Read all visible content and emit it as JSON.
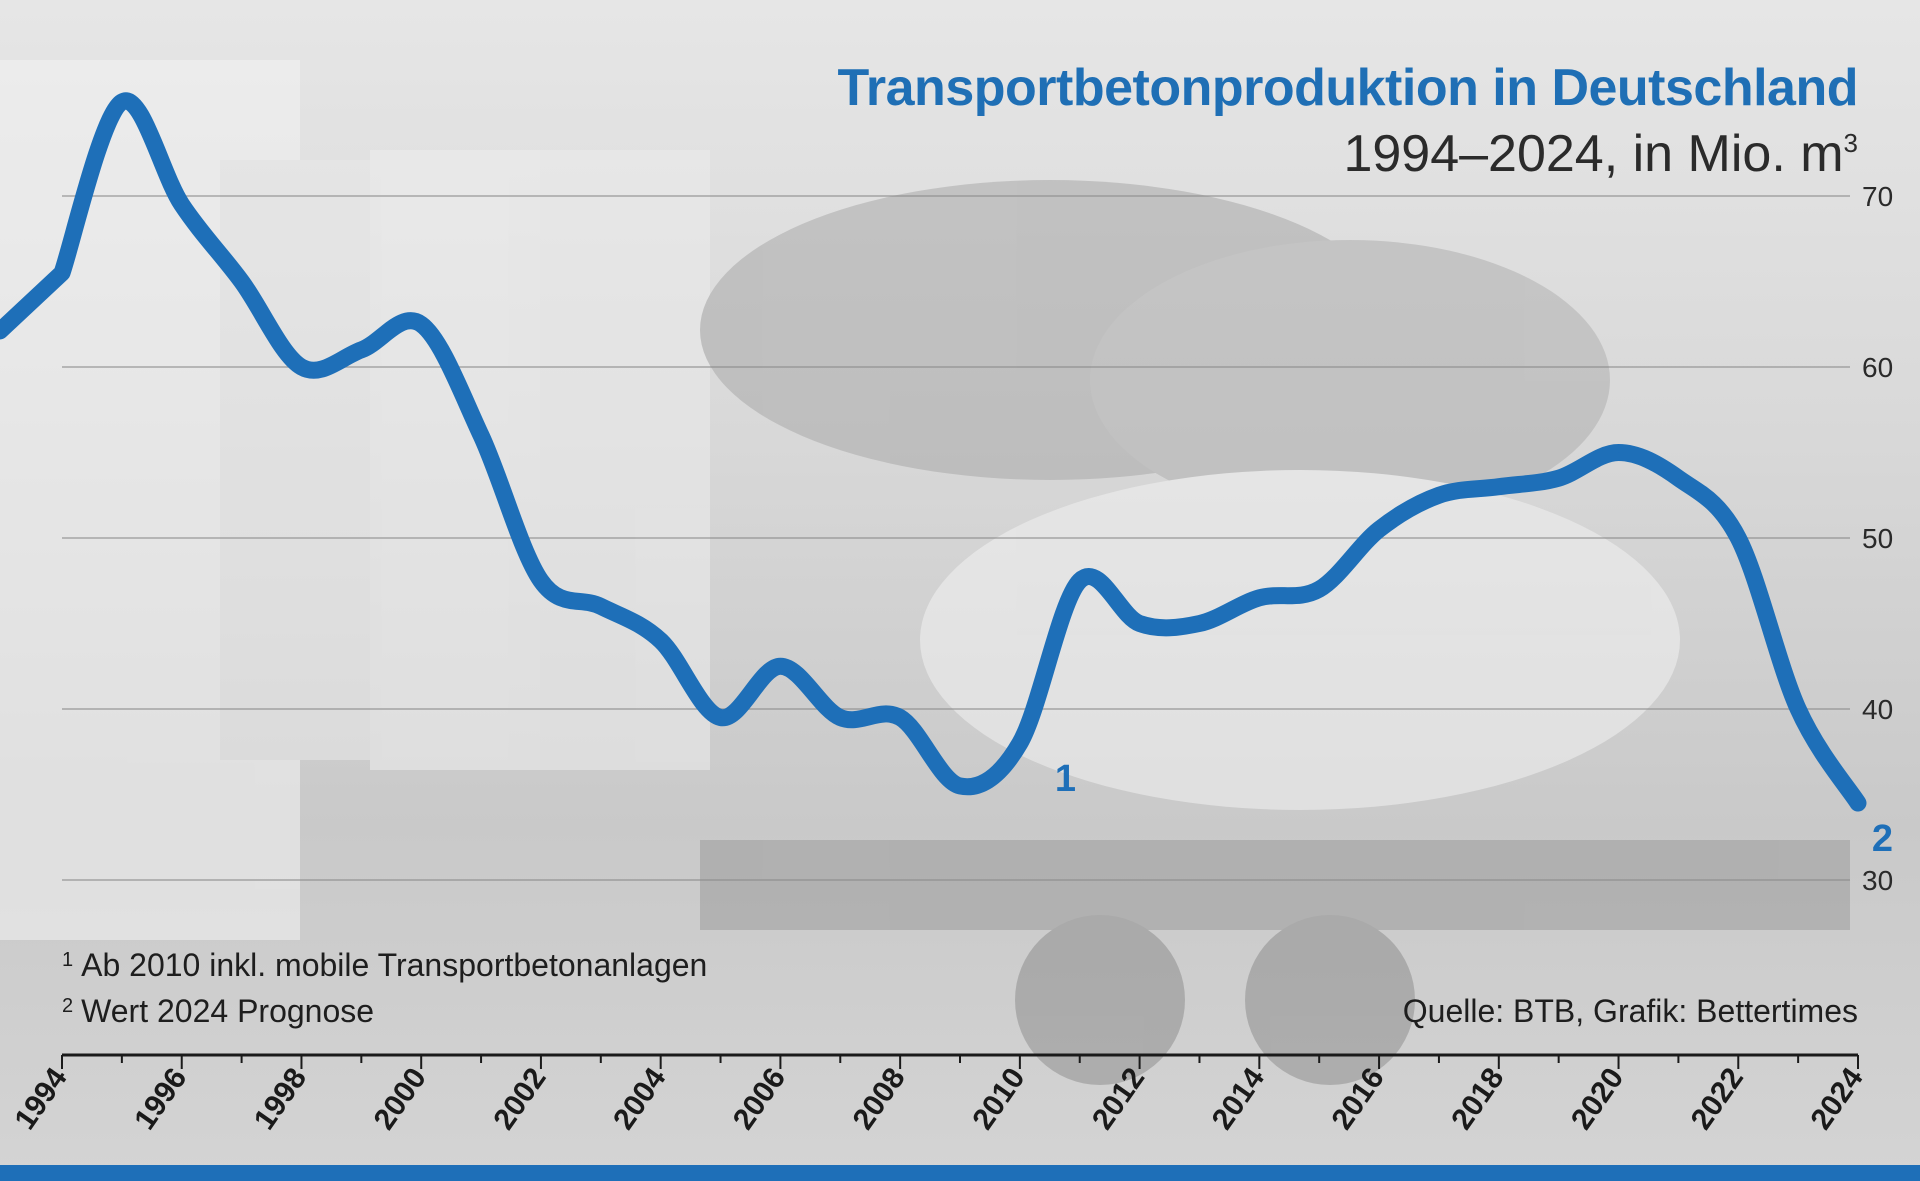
{
  "chart_data": {
    "type": "line",
    "title": "Transportbetonproduktion in Deutschland",
    "subtitle": "1994–2024, in Mio. m",
    "subtitle_sup": "3",
    "xlabel": "",
    "ylabel": "",
    "x": [
      1994,
      1995,
      1996,
      1997,
      1998,
      1999,
      2000,
      2001,
      2002,
      2003,
      2004,
      2005,
      2006,
      2007,
      2008,
      2009,
      2010,
      2011,
      2012,
      2013,
      2014,
      2015,
      2016,
      2017,
      2018,
      2019,
      2020,
      2021,
      2022,
      2023,
      2024
    ],
    "series": [
      {
        "values": [
          65.5,
          75.5,
          69.5,
          65.0,
          60.0,
          61.0,
          62.5,
          56.0,
          47.5,
          46.0,
          44.0,
          39.5,
          42.5,
          39.5,
          39.5,
          35.5,
          38.0,
          47.5,
          45.0,
          45.0,
          46.5,
          47.0,
          50.5,
          52.5,
          53.0,
          53.5,
          55.0,
          53.5,
          50.0,
          40.0,
          34.5
        ],
        "color": "#1e6fb8"
      }
    ],
    "ylim": [
      30,
      70
    ],
    "y_ticks": [
      30,
      40,
      50,
      60,
      70
    ],
    "x_ticks": [
      "1994",
      "1996",
      "1998",
      "2000",
      "2002",
      "2004",
      "2006",
      "2008",
      "2010",
      "2012",
      "2014",
      "2016",
      "2018",
      "2020",
      "2022",
      "2024"
    ],
    "annotations": [
      {
        "x": 2010,
        "text": "1"
      },
      {
        "x": 2024,
        "text": "2"
      }
    ],
    "grid": true,
    "y_axis_side": "right"
  },
  "notes": {
    "note1_sup": "1",
    "note1_text": "Ab 2010 inkl. mobile Transportbetonanlagen",
    "note2_sup": "2",
    "note2_text": "Wert 2024 Prognose"
  },
  "source": "Quelle: BTB, Grafik: Bettertimes",
  "colors": {
    "accent": "#1e6fb8",
    "grid": "#8a8a8a",
    "text": "#1e1e1e"
  }
}
